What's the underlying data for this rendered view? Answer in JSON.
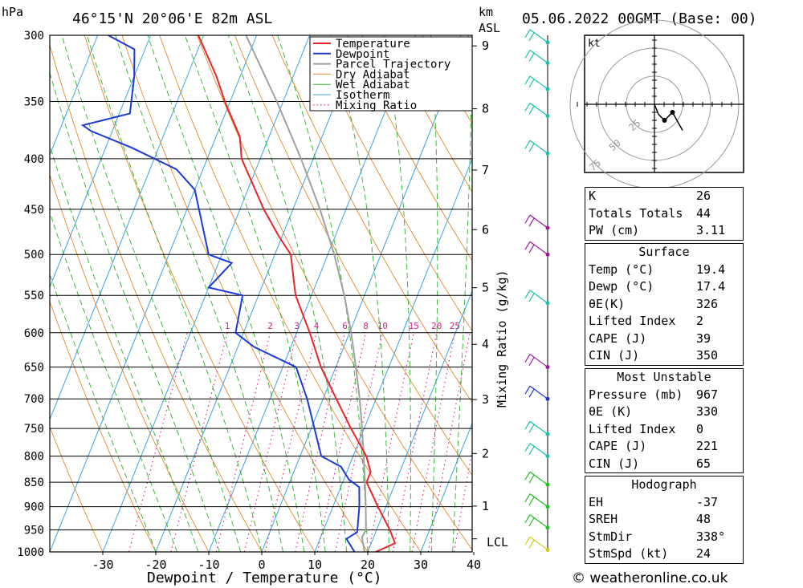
{
  "header": {
    "pressure_unit": "hPa",
    "location": "46°15'N  20°06'E  82m  ASL",
    "km_unit": "km",
    "km_unit2": "ASL",
    "datetime": "05.06.2022  00GMT  (Base: 00)"
  },
  "chart_data": {
    "type": "line",
    "title": "46°15'N  20°06'E  82m  ASL",
    "xlabel": "Dewpoint / Temperature (°C)",
    "ylabel": "hPa",
    "y_scale": "log",
    "xlim": [
      -40,
      40
    ],
    "ylim": [
      1000,
      300
    ],
    "x_ticks": [
      -30,
      -20,
      -10,
      0,
      10,
      20,
      30,
      40
    ],
    "pressure_ticks": [
      300,
      350,
      400,
      450,
      500,
      550,
      600,
      650,
      700,
      750,
      800,
      850,
      900,
      950,
      1000
    ],
    "km_ticks": [
      1,
      2,
      3,
      4,
      5,
      6,
      7,
      8,
      9
    ],
    "mixing_ratio_axis_label": "Mixing Ratio (g/kg)",
    "mixing_ratio_labels": [
      "1",
      "2",
      "3",
      "4",
      "6",
      "8",
      "10",
      "15",
      "20",
      "25"
    ],
    "lcl_label": "LCL",
    "legend": [
      "Temperature",
      "Dewpoint",
      "Parcel Trajectory",
      "Dry Adiabat",
      "Wet Adiabat",
      "Isotherm",
      "Mixing Ratio"
    ],
    "legend_position": "top-right",
    "series": [
      {
        "name": "Temperature",
        "color": "#e8262a",
        "p": [
          1000,
          980,
          950,
          900,
          850,
          830,
          800,
          750,
          700,
          650,
          600,
          550,
          500,
          480,
          450,
          400,
          380,
          350,
          330,
          300
        ],
        "t": [
          21.5,
          24.5,
          22.5,
          18.5,
          14.5,
          14.5,
          12.5,
          7.5,
          2.5,
          -2.8,
          -7.5,
          -13.0,
          -17.0,
          -20.5,
          -25.5,
          -33.5,
          -35.5,
          -41.0,
          -44.5,
          -51.0
        ]
      },
      {
        "name": "Dewpoint",
        "color": "#1a3bd6",
        "p": [
          1000,
          970,
          955,
          900,
          860,
          845,
          820,
          800,
          700,
          650,
          620,
          600,
          550,
          540,
          510,
          500,
          430,
          410,
          390,
          375,
          370,
          360,
          330,
          310,
          300
        ],
        "t": [
          17.5,
          15.0,
          16.5,
          15.0,
          13.5,
          11.0,
          8.5,
          4.0,
          -3.0,
          -7.5,
          -17.0,
          -21.5,
          -23.0,
          -30.0,
          -27.5,
          -32.5,
          -40.0,
          -45.0,
          -55.0,
          -64.0,
          -66.0,
          -58.0,
          -60.0,
          -62.0,
          -68.0
        ]
      },
      {
        "name": "Parcel Trajectory",
        "color": "#a0a0a0",
        "p": [
          1000,
          967,
          950,
          900,
          850,
          800,
          750,
          700,
          650,
          600,
          550,
          500,
          450,
          400,
          350,
          300
        ],
        "t": [
          19.4,
          17.8,
          18.0,
          16.2,
          14.2,
          12.0,
          9.6,
          6.9,
          3.8,
          0.3,
          -3.8,
          -8.8,
          -14.9,
          -22.3,
          -31.2,
          -42.0
        ]
      }
    ]
  },
  "hodograph": {
    "unit": "kt",
    "ring_labels": [
      "25",
      "50",
      "75"
    ],
    "points": [
      [
        0,
        0
      ],
      [
        2,
        -5
      ],
      [
        5,
        -8
      ],
      [
        9,
        -4
      ],
      [
        14,
        -13
      ]
    ]
  },
  "indices": {
    "top": [
      {
        "k": "K",
        "v": "26"
      },
      {
        "k": "Totals Totals",
        "v": "44"
      },
      {
        "k": "PW (cm)",
        "v": "3.11"
      }
    ],
    "surface_title": "Surface",
    "surface": [
      {
        "k": "Temp (°C)",
        "v": "19.4"
      },
      {
        "k": "Dewp (°C)",
        "v": "17.4"
      },
      {
        "k": "θE(K)",
        "v": "326"
      },
      {
        "k": "Lifted Index",
        "v": "2"
      },
      {
        "k": "CAPE (J)",
        "v": "39"
      },
      {
        "k": "CIN (J)",
        "v": "350"
      }
    ],
    "unstable_title": "Most Unstable",
    "unstable": [
      {
        "k": "Pressure (mb)",
        "v": "967"
      },
      {
        "k": "θE (K)",
        "v": "330"
      },
      {
        "k": "Lifted Index",
        "v": "0"
      },
      {
        "k": "CAPE (J)",
        "v": "221"
      },
      {
        "k": "CIN (J)",
        "v": "65"
      }
    ],
    "hodo_title": "Hodograph",
    "hodo": [
      {
        "k": "EH",
        "v": "-37"
      },
      {
        "k": "SREH",
        "v": "48"
      },
      {
        "k": "StmDir",
        "v": "338°"
      },
      {
        "k": "StmSpd (kt)",
        "v": "24"
      }
    ]
  },
  "footer": {
    "copyright": "© weatheronline.co.uk"
  },
  "colors": {
    "temperature": "#e8262a",
    "dewpoint": "#1a3bd6",
    "parcel": "#a0a0a0",
    "dry_adiabat": "#e08a2a",
    "wet_adiabat": "#2bb02b",
    "isotherm": "#39a4e0",
    "mixing_ratio": "#d0208a"
  }
}
